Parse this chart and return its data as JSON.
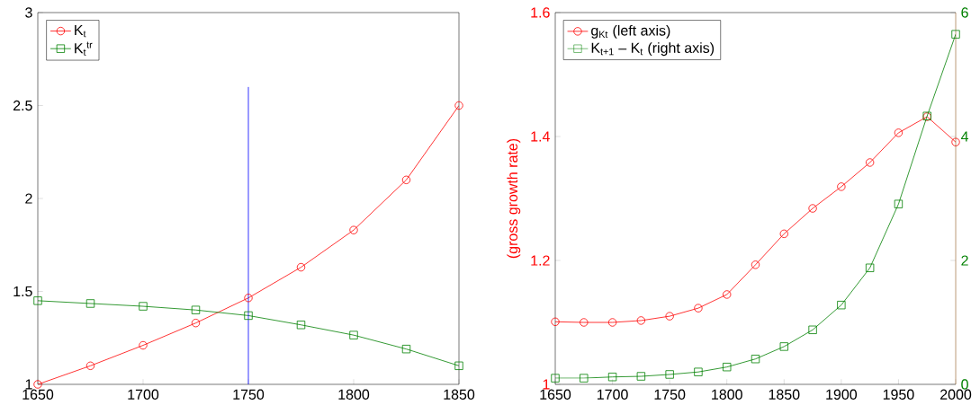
{
  "chart_data": [
    {
      "type": "line",
      "x": [
        1650,
        1675,
        1700,
        1725,
        1750,
        1775,
        1800,
        1825,
        1850
      ],
      "series": [
        {
          "name": "K$_{t}$",
          "color": "#ff0000",
          "marker": "circle",
          "values": [
            1.0,
            1.1,
            1.21,
            1.33,
            1.465,
            1.63,
            1.83,
            2.1,
            2.5
          ]
        },
        {
          "name": "K$_{t}$$^{tr}$",
          "color": "#008000",
          "marker": "square",
          "values": [
            1.45,
            1.435,
            1.42,
            1.4,
            1.37,
            1.32,
            1.265,
            1.19,
            1.1
          ]
        },
        {
          "color": "#0000ff",
          "marker": "none",
          "x": [
            1750,
            1750
          ],
          "values": [
            1.0,
            2.6
          ]
        }
      ],
      "xlim": [
        1650,
        1850
      ],
      "ylim": [
        1,
        3
      ],
      "xticks": [
        1650,
        1700,
        1750,
        1800,
        1850
      ],
      "yticks": [
        1,
        1.5,
        2,
        2.5,
        3
      ],
      "legend": "top left"
    },
    {
      "type": "line",
      "x": [
        1650,
        1675,
        1700,
        1725,
        1750,
        1775,
        1800,
        1825,
        1850,
        1875,
        1900,
        1925,
        1950,
        1975,
        2000
      ],
      "ylabel": "(gross growth rate)",
      "series": [
        {
          "name": "g$_{Kt}$ (left axis)",
          "color": "#ff0000",
          "marker": "circle",
          "values": [
            1.101,
            1.1,
            1.1,
            1.103,
            1.11,
            1.123,
            1.145,
            1.193,
            1.243,
            1.284,
            1.319,
            1.358,
            1.406,
            1.432,
            1.391
          ]
        },
        {
          "name": "K$_{t+1}$ – K$_{t}$ (right axis)",
          "color": "#008000",
          "marker": "square",
          "axis": "y2",
          "values": [
            0.1,
            0.1,
            0.12,
            0.13,
            0.16,
            0.2,
            0.28,
            0.41,
            0.61,
            0.88,
            1.28,
            1.88,
            2.91,
            4.33,
            5.65
          ]
        }
      ],
      "xlim": [
        1650,
        2000
      ],
      "ylim": [
        1,
        1.6
      ],
      "y2lim": [
        0,
        6
      ],
      "xticks": [
        1650,
        1700,
        1750,
        1800,
        1850,
        1900,
        1950,
        2000
      ],
      "yticks": [
        1,
        1.2,
        1.4,
        1.6
      ],
      "y2ticks": [
        0,
        2,
        4,
        6
      ],
      "legend": "top left"
    }
  ]
}
